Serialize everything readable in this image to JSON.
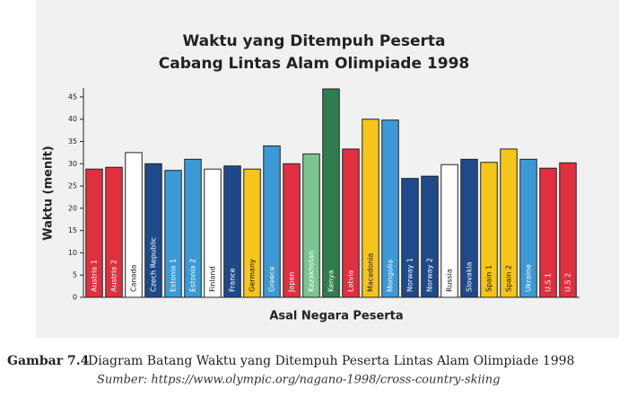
{
  "chart_data": {
    "type": "bar",
    "title": [
      "Waktu yang Ditempuh Peserta",
      "Cabang Lintas Alam Olimpiade 1998"
    ],
    "y_label": "Waktu (menit)",
    "x_label": "Asal Negara Peserta",
    "categories": [
      "Austria 1",
      "Austria 2",
      "Canada",
      "Czech Republic",
      "Estonia 1",
      "Estonia 2",
      "Finland",
      "France",
      "Germany",
      "Greece",
      "Japan",
      "Kazakhstan",
      "Kenya",
      "Latvia",
      "Macedonia",
      "Mongolia",
      "Norway 1",
      "Norway 2",
      "Russia",
      "Slovakia",
      "Spain 1",
      "Spain 2",
      "Ukraine",
      "U.S 1",
      "U.S 2"
    ],
    "values": [
      28.8,
      29.2,
      32.5,
      30,
      28.5,
      31,
      28.8,
      29.5,
      28.8,
      34,
      30,
      32.2,
      46.8,
      33.3,
      40,
      39.8,
      26.7,
      27.2,
      29.8,
      31,
      30.3,
      33.3,
      31,
      29,
      30.2
    ],
    "colors": [
      "#e0303f",
      "#e0303f",
      "#ffffff",
      "#1e4a8a",
      "#3b9ad6",
      "#3b9ad6",
      "#ffffff",
      "#1e4a8a",
      "#f6c51a",
      "#3b9ad6",
      "#e0303f",
      "#7cc490",
      "#2f7d4c",
      "#e0303f",
      "#f6c51a",
      "#3b9ad6",
      "#1e4a8a",
      "#1e4a8a",
      "#ffffff",
      "#1e4a8a",
      "#f6c51a",
      "#f6c51a",
      "#3b9ad6",
      "#e0303f",
      "#e0303f"
    ],
    "ylim": [
      0,
      47
    ],
    "yticks": [
      0,
      5,
      10,
      15,
      20,
      25,
      30,
      35,
      40,
      45
    ],
    "caption_label": "Gambar 7.4",
    "caption": "Diagram Batang Waktu yang Ditempuh Peserta Lintas Alam Olimpiade 1998",
    "source": "Sumber: https://www.olympic.org/nagano-1998/cross-country-skiing"
  }
}
